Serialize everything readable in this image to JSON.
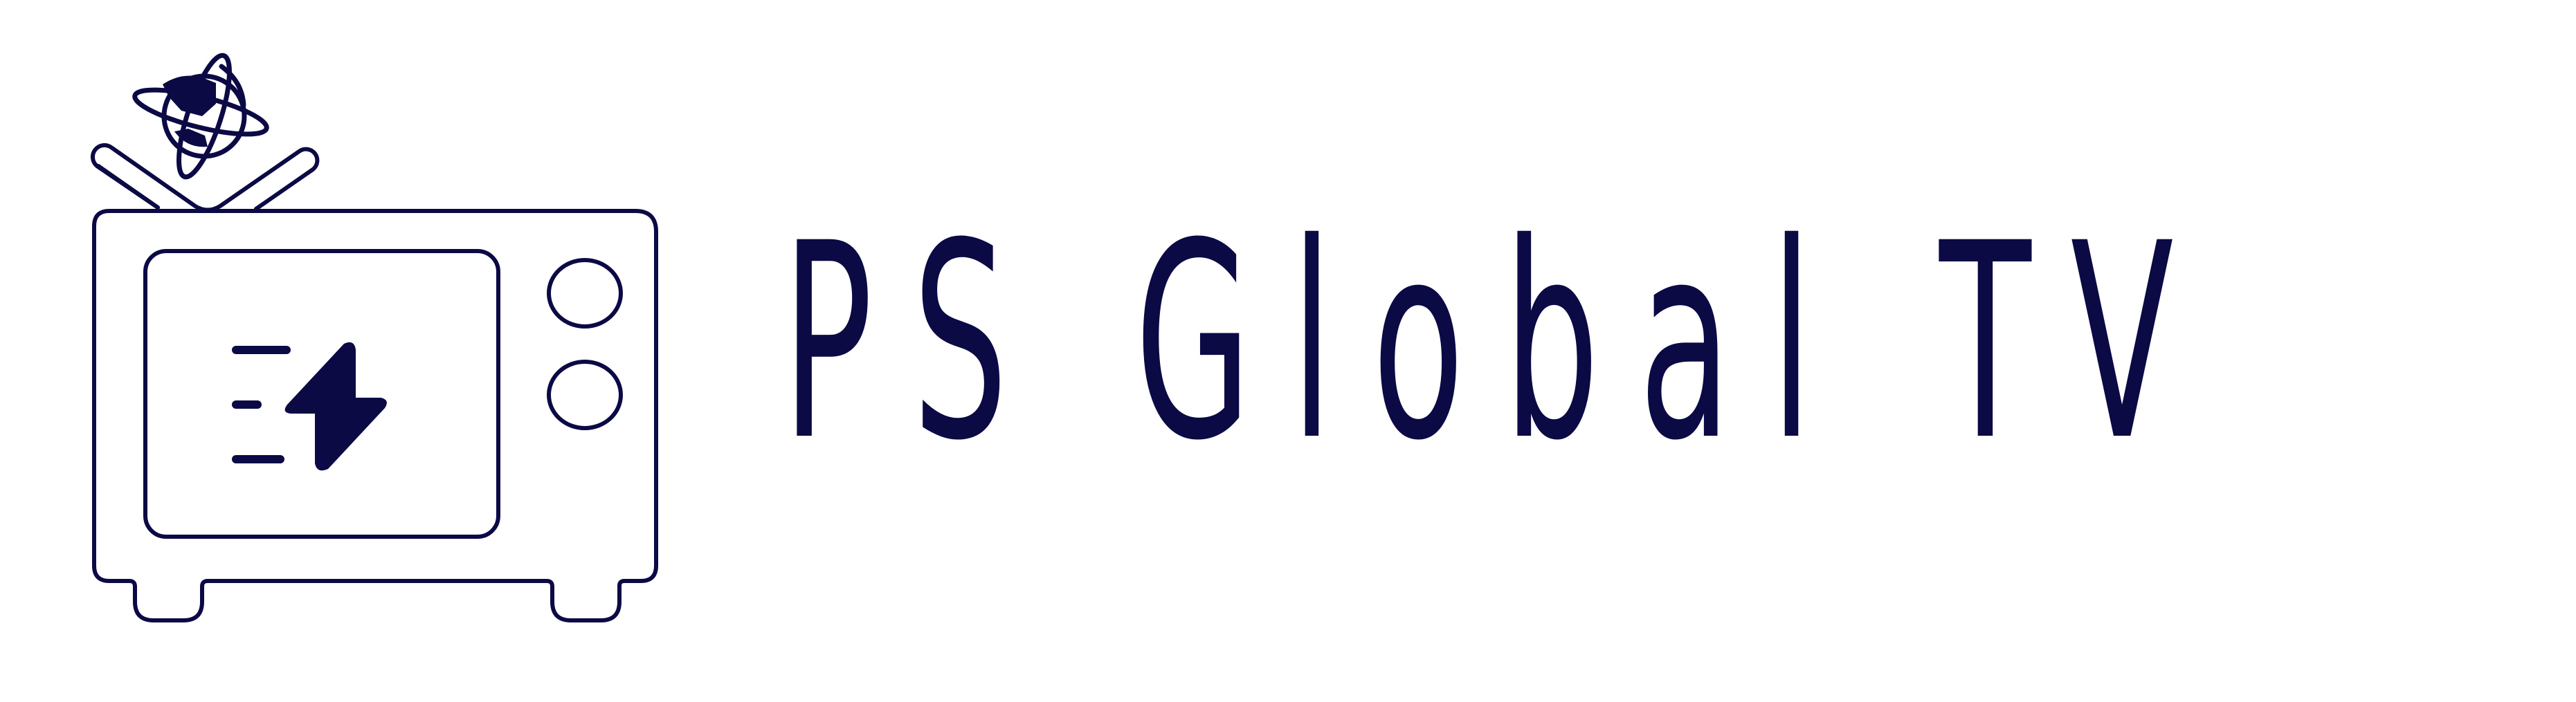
{
  "brand": {
    "name": "PS Global TV"
  },
  "icons": {
    "logo": "retro-tv-icon",
    "globe": "globe-icon",
    "bolt": "lightning-bolt-icon"
  },
  "colors": {
    "primary": "#0b0a45",
    "background": "#ffffff"
  }
}
